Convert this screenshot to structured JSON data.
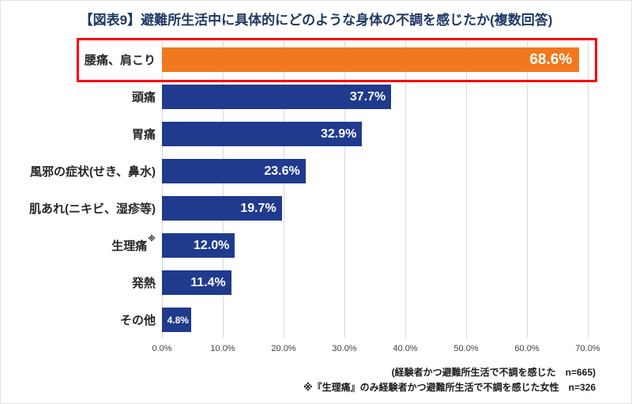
{
  "title": "【図表9】避難所生活中に具体的にどのような身体の不調を感じたか(複数回答)",
  "chart_data": {
    "type": "bar",
    "orientation": "horizontal",
    "title": "【図表9】避難所生活中に具体的にどのような身体の不調を感じたか(複数回答)",
    "xlabel": "",
    "ylabel": "",
    "categories": [
      "腰痛、肩こり",
      "頭痛",
      "胃痛",
      "風邪の症状(せき、鼻水)",
      "肌あれ(ニキビ、湿疹等)",
      "生理痛",
      "発熱",
      "その他"
    ],
    "category_superscripts": [
      "",
      "",
      "",
      "",
      "",
      "※",
      "",
      ""
    ],
    "values": [
      68.6,
      37.7,
      32.9,
      23.6,
      19.7,
      12.0,
      11.4,
      4.8
    ],
    "value_labels": [
      "68.6%",
      "37.7%",
      "32.9%",
      "23.6%",
      "19.7%",
      "12.0%",
      "11.4%",
      "4.8%"
    ],
    "xlim": [
      0,
      70
    ],
    "x_ticks": [
      "0.0%",
      "10.0%",
      "20.0%",
      "30.0%",
      "40.0%",
      "50.0%",
      "60.0%",
      "70.0%"
    ],
    "grid": true,
    "legend": false,
    "highlight_index": 0
  },
  "footnotes": [
    "(経験者かつ避難所生活で不調を感じた　n=665)",
    "※『生理痛』のみ経験者かつ避難所生活で不調を感じた女性　n=326"
  ],
  "colors": {
    "title_text": "#1F3864",
    "label_text": "#262626",
    "bar": "#203A8D",
    "highlight_bar": "#F0781E",
    "highlight_box": "#FF0000",
    "value_text": "#FFFFFF",
    "grid": "#D9D9D9",
    "tick_text": "#404040",
    "footnote_text": "#1A1A1A"
  }
}
